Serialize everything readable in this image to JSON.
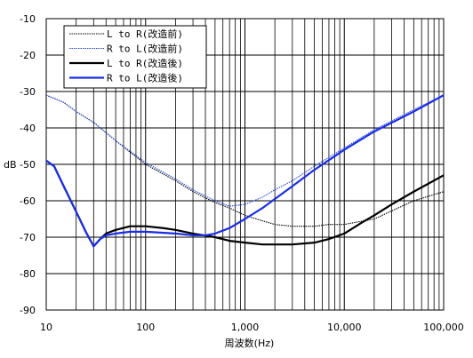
{
  "chart_data": {
    "type": "line",
    "xlabel": "周波数(Hz)",
    "ylabel": "dB",
    "x_scale": "log",
    "xlim": [
      10,
      100000
    ],
    "ylim": [
      -90,
      -10
    ],
    "grid": true,
    "legend_position": "top-left",
    "x_ticks": [
      {
        "value": 10,
        "label": "10"
      },
      {
        "value": 100,
        "label": "100"
      },
      {
        "value": 1000,
        "label": "1,000"
      },
      {
        "value": 10000,
        "label": "10,000"
      },
      {
        "value": 100000,
        "label": "100,000"
      }
    ],
    "y_ticks": [
      {
        "value": -10,
        "label": "-10"
      },
      {
        "value": -20,
        "label": "-20"
      },
      {
        "value": -30,
        "label": "-30"
      },
      {
        "value": -40,
        "label": "-40"
      },
      {
        "value": -50,
        "label": "-50"
      },
      {
        "value": -60,
        "label": "-60"
      },
      {
        "value": -70,
        "label": "-70"
      },
      {
        "value": -80,
        "label": "-80"
      },
      {
        "value": -90,
        "label": "-90"
      }
    ],
    "series": [
      {
        "name": "L to R(改造前)",
        "color": "#000000",
        "style": "thin-dotted",
        "points": [
          [
            10,
            -31
          ],
          [
            15,
            -33
          ],
          [
            20,
            -35.5
          ],
          [
            30,
            -38.5
          ],
          [
            50,
            -43.5
          ],
          [
            100,
            -50
          ],
          [
            200,
            -54.5
          ],
          [
            300,
            -57.5
          ],
          [
            500,
            -60.5
          ],
          [
            700,
            -62
          ],
          [
            1000,
            -64
          ],
          [
            1500,
            -65.5
          ],
          [
            2000,
            -66.5
          ],
          [
            3000,
            -67
          ],
          [
            5000,
            -67
          ],
          [
            7000,
            -66.5
          ],
          [
            10000,
            -66.5
          ],
          [
            20000,
            -65
          ],
          [
            50000,
            -60
          ],
          [
            100000,
            -57.5
          ]
        ]
      },
      {
        "name": "R to L(改造前)",
        "color": "#2a4dd8",
        "style": "thin-dotted",
        "points": [
          [
            10,
            -31
          ],
          [
            15,
            -33
          ],
          [
            20,
            -35.5
          ],
          [
            30,
            -38.5
          ],
          [
            50,
            -43.5
          ],
          [
            100,
            -49.5
          ],
          [
            200,
            -54
          ],
          [
            300,
            -57
          ],
          [
            500,
            -60
          ],
          [
            700,
            -61.5
          ],
          [
            1000,
            -61
          ],
          [
            1500,
            -59
          ],
          [
            2000,
            -57
          ],
          [
            3000,
            -54.5
          ],
          [
            5000,
            -50.5
          ],
          [
            10000,
            -45.5
          ],
          [
            20000,
            -40.5
          ],
          [
            50000,
            -35
          ],
          [
            100000,
            -31
          ]
        ]
      },
      {
        "name": "L to R(改造後)",
        "color": "#000000",
        "style": "thick-solid",
        "points": [
          [
            10,
            -49
          ],
          [
            12,
            -50.5
          ],
          [
            15,
            -56
          ],
          [
            20,
            -63
          ],
          [
            25,
            -68.5
          ],
          [
            30,
            -72.5
          ],
          [
            35,
            -70.5
          ],
          [
            40,
            -69
          ],
          [
            50,
            -68
          ],
          [
            70,
            -67
          ],
          [
            100,
            -67
          ],
          [
            150,
            -67.5
          ],
          [
            200,
            -68
          ],
          [
            300,
            -69
          ],
          [
            500,
            -70
          ],
          [
            700,
            -71
          ],
          [
            1000,
            -71.5
          ],
          [
            1500,
            -72
          ],
          [
            2000,
            -72
          ],
          [
            3000,
            -72
          ],
          [
            5000,
            -71.5
          ],
          [
            7000,
            -70.5
          ],
          [
            10000,
            -69
          ],
          [
            15000,
            -66
          ],
          [
            20000,
            -64
          ],
          [
            30000,
            -61
          ],
          [
            50000,
            -57.5
          ],
          [
            100000,
            -53
          ]
        ]
      },
      {
        "name": "R to L(改造後)",
        "color": "#1a2ee8",
        "style": "thick-solid",
        "points": [
          [
            10,
            -49
          ],
          [
            12,
            -50.5
          ],
          [
            15,
            -56
          ],
          [
            20,
            -63
          ],
          [
            25,
            -68.5
          ],
          [
            30,
            -72.5
          ],
          [
            35,
            -70.5
          ],
          [
            40,
            -69.5
          ],
          [
            50,
            -69
          ],
          [
            70,
            -68.5
          ],
          [
            100,
            -68.5
          ],
          [
            200,
            -69
          ],
          [
            300,
            -69.5
          ],
          [
            400,
            -69.5
          ],
          [
            500,
            -69
          ],
          [
            700,
            -67.5
          ],
          [
            1000,
            -65
          ],
          [
            1500,
            -62
          ],
          [
            2000,
            -59.5
          ],
          [
            3000,
            -56
          ],
          [
            5000,
            -51.5
          ],
          [
            10000,
            -46
          ],
          [
            20000,
            -41
          ],
          [
            50000,
            -35.5
          ],
          [
            100000,
            -31
          ]
        ]
      }
    ]
  }
}
